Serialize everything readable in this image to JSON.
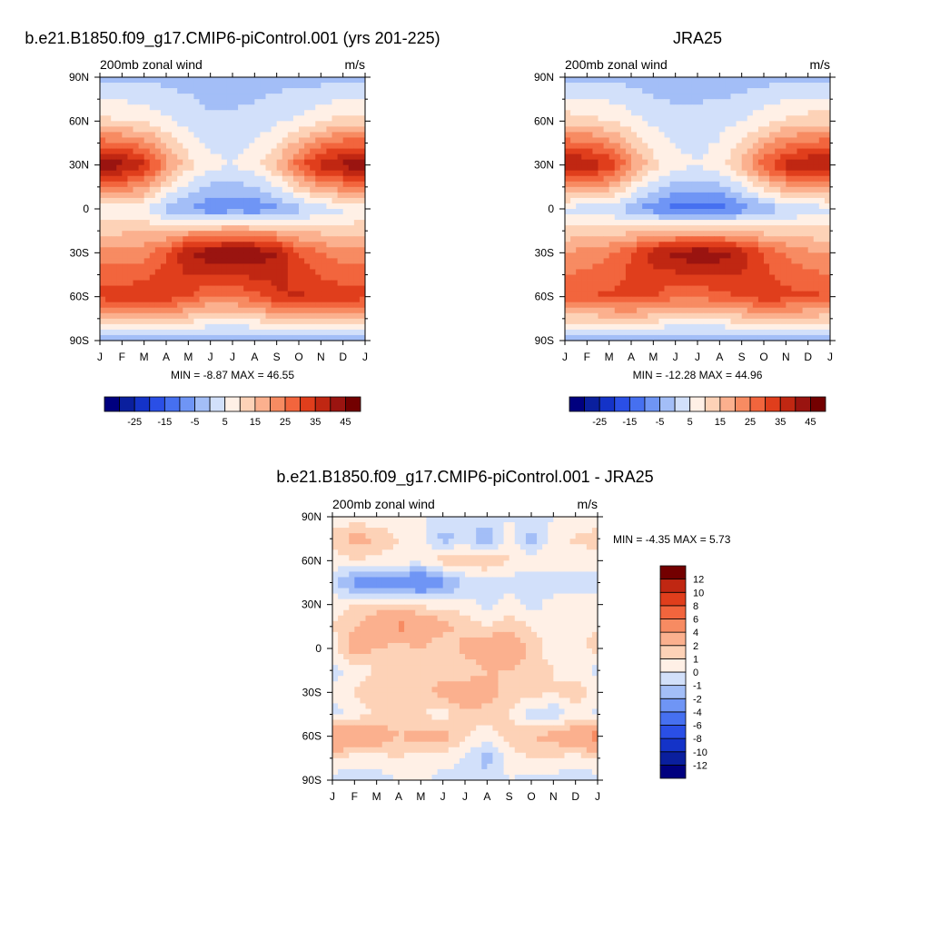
{
  "chart_data": [
    {
      "type": "heatmap",
      "title": "b.e21.B1850.f09_g17.CMIP6-piControl.001 (yrs 201-225)",
      "left_label": "200mb zonal wind",
      "units": "m/s",
      "x_ticks": [
        "J",
        "F",
        "M",
        "A",
        "M",
        "J",
        "J",
        "A",
        "S",
        "O",
        "N",
        "D",
        "J"
      ],
      "y_ticks": [
        "90N",
        "60N",
        "30N",
        "0",
        "30S",
        "60S",
        "90S"
      ],
      "ylim": [
        -90,
        90
      ],
      "stats": "MIN =  -8.87 MAX =  46.55",
      "colorbar": {
        "orientation": "horizontal",
        "levels": [
          -30,
          -25,
          -20,
          -15,
          -10,
          -5,
          0,
          5,
          10,
          15,
          20,
          25,
          30,
          35,
          40,
          45
        ],
        "tick_labels": [
          "-25",
          "-15",
          "-5",
          "5",
          "15",
          "25",
          "35",
          "45"
        ],
        "colors": [
          "#00007f",
          "#0a1f9e",
          "#1433c8",
          "#2a4fe6",
          "#4670f0",
          "#6f95f5",
          "#a3bef7",
          "#d2e0fa",
          "#fff0e6",
          "#fdd2b7",
          "#fbb08e",
          "#f78b62",
          "#f2653d",
          "#e03e1c",
          "#c02712",
          "#9a1410",
          "#730000"
        ]
      },
      "grid": {
        "months": [
          "J",
          "F",
          "M",
          "A",
          "M",
          "J",
          "J",
          "A",
          "S",
          "O",
          "N",
          "D",
          "J"
        ],
        "lat": [
          90,
          60,
          30,
          0,
          -30,
          -60,
          -90
        ],
        "u": [
          [
            -2,
            -1,
            -1,
            -2,
            -2,
            -3,
            -3,
            -3,
            -2,
            -2,
            -2,
            -2,
            -2
          ],
          [
            12,
            10,
            9,
            6,
            3,
            1,
            1,
            2,
            4,
            6,
            9,
            12,
            12
          ],
          [
            43,
            42,
            36,
            22,
            12,
            7,
            5,
            8,
            15,
            28,
            38,
            42,
            43
          ],
          [
            5,
            6,
            5,
            -2,
            -5,
            -9,
            -8,
            -9,
            -6,
            -2,
            2,
            4,
            5
          ],
          [
            22,
            22,
            23,
            30,
            40,
            44,
            46,
            45,
            40,
            30,
            25,
            22,
            22
          ],
          [
            32,
            33,
            34,
            33,
            30,
            25,
            25,
            28,
            34,
            36,
            34,
            33,
            32
          ],
          [
            -4,
            -4,
            -4,
            -4,
            -4,
            -5,
            -5,
            -5,
            -4,
            -4,
            -4,
            -4,
            -4
          ]
        ]
      }
    },
    {
      "type": "heatmap",
      "title": "JRA25",
      "left_label": "200mb zonal wind",
      "units": "m/s",
      "x_ticks": [
        "J",
        "F",
        "M",
        "A",
        "M",
        "J",
        "J",
        "A",
        "S",
        "O",
        "N",
        "D",
        "J"
      ],
      "y_ticks": [
        "90N",
        "60N",
        "30N",
        "0",
        "30S",
        "60S",
        "90S"
      ],
      "ylim": [
        -90,
        90
      ],
      "stats": "MIN = -12.28 MAX =  44.96",
      "colorbar": {
        "orientation": "horizontal",
        "levels": [
          -30,
          -25,
          -20,
          -15,
          -10,
          -5,
          0,
          5,
          10,
          15,
          20,
          25,
          30,
          35,
          40,
          45
        ],
        "tick_labels": [
          "-25",
          "-15",
          "-5",
          "5",
          "15",
          "25",
          "35",
          "45"
        ],
        "colors": [
          "#00007f",
          "#0a1f9e",
          "#1433c8",
          "#2a4fe6",
          "#4670f0",
          "#6f95f5",
          "#a3bef7",
          "#d2e0fa",
          "#fff0e6",
          "#fdd2b7",
          "#fbb08e",
          "#f78b62",
          "#f2653d",
          "#e03e1c",
          "#c02712",
          "#9a1410",
          "#730000"
        ]
      },
      "grid": {
        "months": [
          "J",
          "F",
          "M",
          "A",
          "M",
          "J",
          "J",
          "A",
          "S",
          "O",
          "N",
          "D",
          "J"
        ],
        "lat": [
          90,
          60,
          30,
          0,
          -30,
          -60,
          -90
        ],
        "u": [
          [
            -2,
            -2,
            -1,
            -2,
            -3,
            -3,
            -3,
            -3,
            -3,
            -2,
            -2,
            -2,
            -2
          ],
          [
            13,
            12,
            10,
            7,
            4,
            2,
            2,
            3,
            5,
            8,
            11,
            13,
            13
          ],
          [
            41,
            40,
            34,
            22,
            12,
            7,
            5,
            8,
            16,
            28,
            37,
            40,
            41
          ],
          [
            3,
            2,
            2,
            -4,
            -8,
            -12,
            -11,
            -12,
            -8,
            -4,
            0,
            2,
            3
          ],
          [
            20,
            22,
            24,
            30,
            38,
            42,
            44,
            43,
            38,
            30,
            24,
            21,
            20
          ],
          [
            30,
            30,
            31,
            32,
            30,
            26,
            26,
            28,
            31,
            33,
            32,
            31,
            30
          ],
          [
            -5,
            -5,
            -5,
            -5,
            -5,
            -6,
            -6,
            -6,
            -5,
            -5,
            -5,
            -5,
            -5
          ]
        ]
      }
    },
    {
      "type": "heatmap",
      "title": "b.e21.B1850.f09_g17.CMIP6-piControl.001 - JRA25",
      "left_label": "200mb zonal wind",
      "units": "m/s",
      "x_ticks": [
        "J",
        "F",
        "M",
        "A",
        "M",
        "J",
        "J",
        "A",
        "S",
        "O",
        "N",
        "D",
        "J"
      ],
      "y_ticks": [
        "90N",
        "60N",
        "30N",
        "0",
        "30S",
        "60S",
        "90S"
      ],
      "ylim": [
        -90,
        90
      ],
      "stats": "MIN =  -4.35 MAX =   5.73",
      "colorbar": {
        "orientation": "vertical",
        "levels": [
          -12,
          -10,
          -8,
          -6,
          -4,
          -2,
          -1,
          0,
          1,
          2,
          4,
          6,
          8,
          10,
          12
        ],
        "tick_labels": [
          "-12",
          "-10",
          "-8",
          "-6",
          "-4",
          "-2",
          "-1",
          "0",
          "1",
          "2",
          "4",
          "6",
          "8",
          "10",
          "12"
        ],
        "colors": [
          "#00007f",
          "#0a1f9e",
          "#1433c8",
          "#2a4fe6",
          "#4670f0",
          "#6f95f5",
          "#a3bef7",
          "#d2e0fa",
          "#fff0e6",
          "#fdd2b7",
          "#fbb08e",
          "#f78b62",
          "#f2653d",
          "#e03e1c",
          "#c02712",
          "#730000"
        ]
      },
      "grid": {
        "months": [
          "J",
          "F",
          "M",
          "A",
          "M",
          "J",
          "J",
          "A",
          "S",
          "O",
          "N",
          "D",
          "J"
        ],
        "lat": [
          90,
          75,
          60,
          45,
          30,
          15,
          0,
          -15,
          -30,
          -45,
          -60,
          -75,
          -90
        ],
        "u": [
          [
            0.3,
            0.3,
            0.2,
            0.1,
            0,
            0,
            -0.5,
            -0.5,
            0,
            -0.5,
            0,
            0.2,
            0.3
          ],
          [
            1.5,
            2.5,
            2.0,
            1.0,
            0.5,
            -1.5,
            -0.5,
            -2.0,
            0.5,
            -1.5,
            0.5,
            1.2,
            1.5
          ],
          [
            0.5,
            1.0,
            0.5,
            0.5,
            0.5,
            1.5,
            1.5,
            2.0,
            1.0,
            0.5,
            0.5,
            0.3,
            0.5
          ],
          [
            -0.5,
            -2.5,
            -3.0,
            -3.0,
            -4.0,
            -2.5,
            -1.0,
            -0.5,
            -0.5,
            -0.5,
            -0.8,
            -0.5,
            -0.5
          ],
          [
            0.5,
            1.0,
            1.5,
            1.5,
            0.8,
            0.5,
            0.5,
            -0.5,
            0.5,
            -0.5,
            0.5,
            0.5,
            0.5
          ],
          [
            1.0,
            2.0,
            3.0,
            4.5,
            3.5,
            2.5,
            1.5,
            1.0,
            1.5,
            1.0,
            0.5,
            0.5,
            1.0
          ],
          [
            0.5,
            2.5,
            2.0,
            1.5,
            2.0,
            1.0,
            2.5,
            3.5,
            3.5,
            1.5,
            0.5,
            0.5,
            1.5
          ],
          [
            -0.5,
            0.5,
            1.0,
            1.5,
            2.0,
            1.5,
            1.0,
            2.0,
            2.0,
            1.5,
            1.0,
            0.5,
            -0.5
          ],
          [
            0.5,
            1.0,
            1.5,
            1.0,
            1.5,
            2.5,
            3.5,
            2.5,
            1.5,
            1.5,
            1.0,
            1.5,
            0.5
          ],
          [
            -0.5,
            0.5,
            1.0,
            1.5,
            1.0,
            0.5,
            1.5,
            1.5,
            1.0,
            -0.5,
            -0.8,
            0.5,
            -0.5
          ],
          [
            4.5,
            3.5,
            3.0,
            2.0,
            2.5,
            2.5,
            1.0,
            0.5,
            1.5,
            2.0,
            2.5,
            3.5,
            5.0
          ],
          [
            1.0,
            0.5,
            0.5,
            1.0,
            0.5,
            0.5,
            0,
            -1.5,
            0.5,
            1.0,
            1.0,
            0.5,
            1.0
          ],
          [
            -0.5,
            -0.5,
            -0.5,
            0,
            0.5,
            -0.5,
            -0.5,
            -0.5,
            0,
            -0.5,
            -0.5,
            -0.5,
            -0.5
          ]
        ]
      }
    }
  ]
}
